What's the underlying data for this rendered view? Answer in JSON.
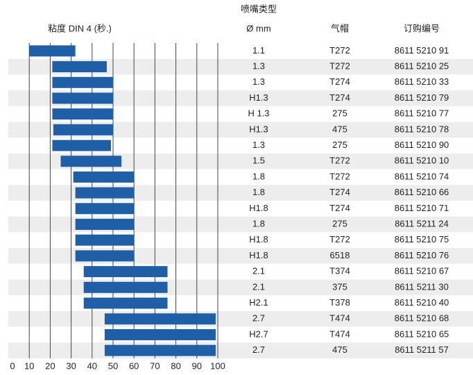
{
  "chart_data": {
    "type": "range_bar",
    "axis_label": "粘度 DIN 4 (秒.)",
    "xlim": [
      0,
      100
    ],
    "xticks": [
      0,
      10,
      20,
      30,
      40,
      50,
      60,
      70,
      80,
      90,
      100
    ],
    "grid": true,
    "color": "#1f5fa8",
    "low": [
      10,
      21,
      21,
      21,
      21,
      21.5,
      21,
      25,
      31,
      32,
      32,
      32,
      32,
      32,
      36,
      36,
      36,
      46,
      46,
      46
    ],
    "high": [
      32,
      47,
      50,
      50,
      50,
      50,
      49,
      54,
      60,
      60,
      60,
      60,
      60,
      60,
      76,
      76,
      76,
      99,
      99,
      99
    ]
  },
  "table": {
    "title": "喷嘴类型",
    "columns": [
      "Ø mm",
      "气帽",
      "订购编号"
    ],
    "rows": [
      [
        "1.1",
        "T272",
        "8611 5210 91"
      ],
      [
        "1.3",
        "T272",
        "8611 5210 25"
      ],
      [
        "1.3",
        "T274",
        "8611 5210 33"
      ],
      [
        "H1.3",
        "T274",
        "8611 5210 79"
      ],
      [
        "H 1.3",
        "275",
        "8611 5210 77"
      ],
      [
        "H1.3",
        "475",
        "8611 5210 78"
      ],
      [
        "1.3",
        "275",
        "8611 5210 90"
      ],
      [
        "1.5",
        "T272",
        "8611 5210 10"
      ],
      [
        "1.8",
        "T272",
        "8611 5210 74"
      ],
      [
        "1.8",
        "T274",
        "8611 5210 66"
      ],
      [
        "H1.8",
        "T274",
        "8611 5210 71"
      ],
      [
        "1.8",
        "275",
        "8611 5211 24"
      ],
      [
        "H1.8",
        "T272",
        "8611 5210 75"
      ],
      [
        "H1.8",
        "6518",
        "8611 5210 76"
      ],
      [
        "2.1",
        "T374",
        "8611 5210 67"
      ],
      [
        "2.1",
        "375",
        "8611 5211 30"
      ],
      [
        "H2.1",
        "T378",
        "8611 5210 40"
      ],
      [
        "2.7",
        "T474",
        "8611 5210 68"
      ],
      [
        "H2.7",
        "T474",
        "8611 5210 65"
      ],
      [
        "2.7",
        "475",
        "8611 5211 57"
      ]
    ]
  }
}
